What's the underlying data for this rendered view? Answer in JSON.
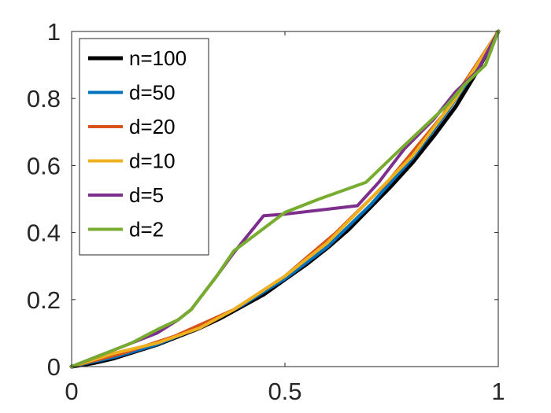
{
  "chart_data": {
    "type": "line",
    "title": "",
    "xlabel": "",
    "ylabel": "",
    "xlim": [
      0,
      1
    ],
    "ylim": [
      0,
      1
    ],
    "xticks": [
      0,
      0.5,
      1
    ],
    "xtick_labels": [
      "0",
      "0.5",
      "1"
    ],
    "yticks": [
      0,
      0.2,
      0.4,
      0.6,
      0.8,
      1
    ],
    "ytick_labels": [
      "0",
      "0.2",
      "0.4",
      "0.6",
      "0.8",
      "1"
    ],
    "grid": false,
    "legend_position": "top-left",
    "series": [
      {
        "name": "n=100",
        "color": "#000000",
        "x": [
          0,
          0.05,
          0.1,
          0.15,
          0.2,
          0.25,
          0.3,
          0.35,
          0.4,
          0.45,
          0.5,
          0.55,
          0.6,
          0.65,
          0.7,
          0.75,
          0.8,
          0.85,
          0.9,
          0.95,
          1
        ],
        "y": [
          0,
          0.01,
          0.025,
          0.045,
          0.065,
          0.09,
          0.115,
          0.145,
          0.18,
          0.215,
          0.26,
          0.305,
          0.355,
          0.41,
          0.475,
          0.54,
          0.61,
          0.69,
          0.775,
          0.88,
          1
        ]
      },
      {
        "name": "d=50",
        "color": "#0072BD",
        "x": [
          0,
          0.1,
          0.2,
          0.3,
          0.4,
          0.5,
          0.6,
          0.7,
          0.8,
          0.88,
          0.95,
          1
        ],
        "y": [
          0,
          0.028,
          0.066,
          0.117,
          0.183,
          0.262,
          0.358,
          0.482,
          0.623,
          0.76,
          0.89,
          1
        ]
      },
      {
        "name": "d=20",
        "color": "#D95319",
        "x": [
          0,
          0.12,
          0.24,
          0.38,
          0.5,
          0.62,
          0.74,
          0.87,
          1
        ],
        "y": [
          0,
          0.04,
          0.09,
          0.17,
          0.27,
          0.4,
          0.55,
          0.75,
          1
        ]
      },
      {
        "name": "d=10",
        "color": "#EDB120",
        "x": [
          0,
          0.1,
          0.2,
          0.3,
          0.38,
          0.5,
          0.6,
          0.7,
          0.8,
          0.9,
          1
        ],
        "y": [
          0,
          0.04,
          0.07,
          0.115,
          0.17,
          0.27,
          0.37,
          0.5,
          0.63,
          0.8,
          1
        ]
      },
      {
        "name": "d=5",
        "color": "#7E2F8E",
        "x": [
          0,
          0.1,
          0.2,
          0.25,
          0.28,
          0.34,
          0.38,
          0.45,
          0.5,
          0.67,
          0.72,
          0.78,
          0.85,
          0.9,
          0.95,
          1
        ],
        "y": [
          0,
          0.05,
          0.1,
          0.14,
          0.17,
          0.27,
          0.34,
          0.45,
          0.455,
          0.48,
          0.55,
          0.65,
          0.74,
          0.82,
          0.88,
          1
        ]
      },
      {
        "name": "d=2",
        "color": "#77AC30",
        "x": [
          0,
          0.1,
          0.14,
          0.2,
          0.25,
          0.28,
          0.34,
          0.38,
          0.5,
          0.58,
          0.69,
          0.78,
          0.88,
          0.92,
          0.97,
          1
        ],
        "y": [
          0,
          0.05,
          0.07,
          0.11,
          0.14,
          0.17,
          0.27,
          0.345,
          0.46,
          0.5,
          0.55,
          0.66,
          0.78,
          0.84,
          0.9,
          1
        ]
      }
    ]
  }
}
